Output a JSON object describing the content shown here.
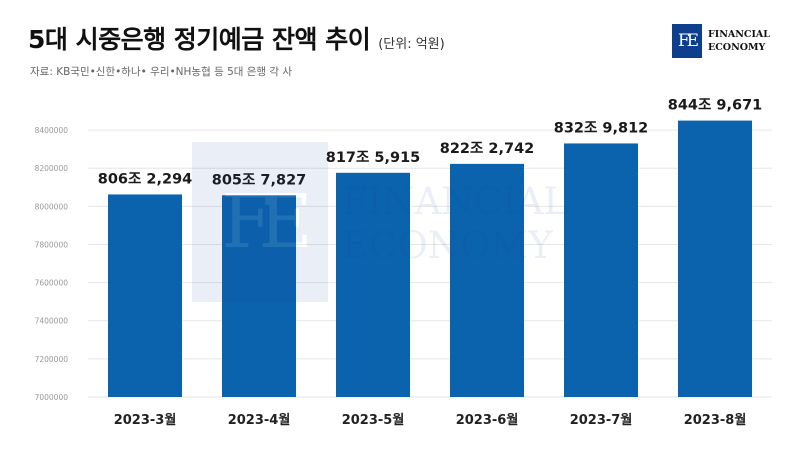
{
  "header": {
    "title": "5대 시중은행 정기예금 잔액 추이",
    "unit": "(단위: 억원)",
    "source": "자료: KB국민•신한•하나• 우리•NH농협 등 5대 은행 각 사"
  },
  "logo": {
    "mark": "FE",
    "line1": "FINANCIAL",
    "line2": "ECONOMY"
  },
  "colors": {
    "bar": "#0b62ad",
    "grid": "#e6e6e6"
  },
  "chart_data": {
    "type": "bar",
    "categories": [
      "2023-3월",
      "2023-4월",
      "2023-5월",
      "2023-6월",
      "2023-7월",
      "2023-8월"
    ],
    "values": [
      8062294,
      8057827,
      8175915,
      8222742,
      8329812,
      8449671
    ],
    "data_labels": [
      "806조 2,294",
      "805조 7,827",
      "817조 5,915",
      "822조 2,742",
      "832조 9,812",
      "844조 9,671"
    ],
    "title": "5대 시중은행 정기예금 잔액 추이",
    "ylim": [
      7000000,
      8500000
    ],
    "yticks": [
      7000000,
      7200000,
      7400000,
      7600000,
      7800000,
      8000000,
      8200000,
      8400000
    ],
    "ytick_labels": [
      "7000000",
      "7200000",
      "7400000",
      "7600000",
      "7800000",
      "8000000",
      "8200000",
      "8400000"
    ],
    "grid": true,
    "legend": "none"
  }
}
